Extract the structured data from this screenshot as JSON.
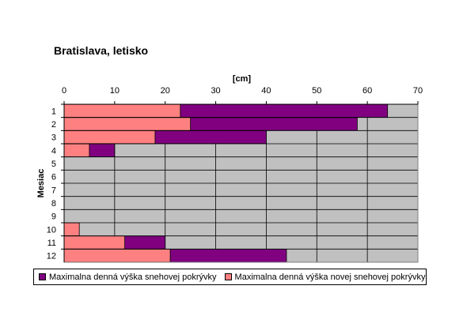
{
  "chart_data": {
    "type": "bar",
    "orientation": "horizontal",
    "title": "Bratislava, letisko",
    "xlabel": "[cm]",
    "ylabel": "Mesiac",
    "xlim": [
      0,
      70
    ],
    "xticks": [
      0,
      10,
      20,
      30,
      40,
      50,
      60,
      70
    ],
    "categories": [
      "1",
      "2",
      "3",
      "4",
      "5",
      "6",
      "7",
      "8",
      "9",
      "10",
      "11",
      "12"
    ],
    "series": [
      {
        "name": "Maximalna denná výška snehovej pokrývky",
        "color": "#800080",
        "values": [
          64,
          58,
          40,
          10,
          0,
          0,
          0,
          0,
          0,
          0,
          20,
          44
        ]
      },
      {
        "name": "Maximalna denná výška novej snehovej pokrývky",
        "color": "#ff8080",
        "values": [
          23,
          25,
          18,
          5,
          0,
          0,
          0,
          0,
          0,
          3,
          12,
          21
        ]
      }
    ],
    "plot_background": "#c0c0c0",
    "grid": true,
    "legend_position": "bottom"
  }
}
